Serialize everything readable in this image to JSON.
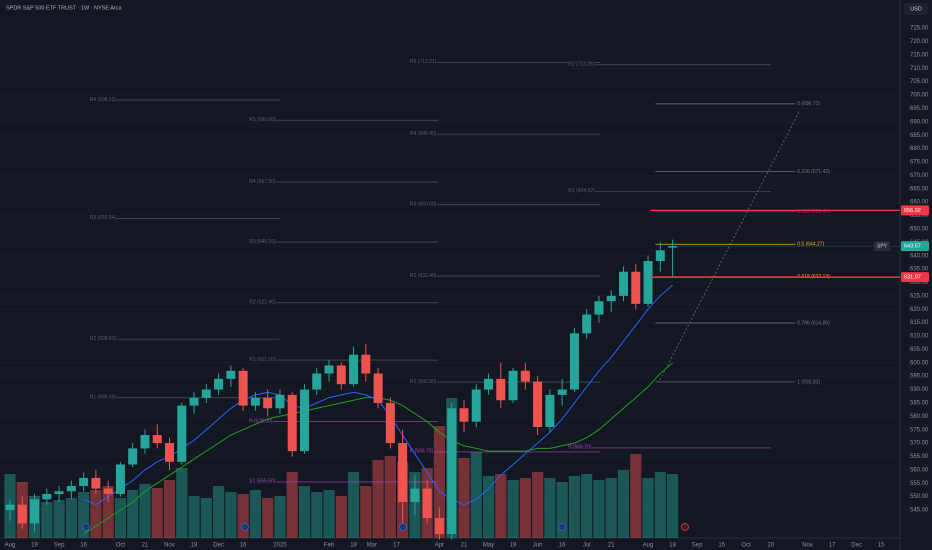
{
  "chart_data": {
    "type": "candlestick",
    "title": "SPDR S&P 500 ETF TRUST · 1W · NYSE Arca",
    "currency": "USD",
    "symbol": "SPY",
    "ylim": [
      533.8,
      735.5
    ],
    "yticks": [
      {
        "value": 545,
        "label": "545.00"
      },
      {
        "value": 550,
        "label": "550.00"
      },
      {
        "value": 555,
        "label": "555.00"
      },
      {
        "value": 560,
        "label": "560.00"
      },
      {
        "value": 565,
        "label": "565.00"
      },
      {
        "value": 570,
        "label": "570.00"
      },
      {
        "value": 575,
        "label": "575.00"
      },
      {
        "value": 580,
        "label": "580.00"
      },
      {
        "value": 585,
        "label": "585.00"
      },
      {
        "value": 590,
        "label": "590.00"
      },
      {
        "value": 595,
        "label": "595.00"
      },
      {
        "value": 600,
        "label": "600.00"
      },
      {
        "value": 605,
        "label": "605.00"
      },
      {
        "value": 610,
        "label": "610.00"
      },
      {
        "value": 615,
        "label": "615.00"
      },
      {
        "value": 620,
        "label": "620.00"
      },
      {
        "value": 625,
        "label": "625.00"
      },
      {
        "value": 630,
        "label": "630.00"
      },
      {
        "value": 635,
        "label": "635.00"
      },
      {
        "value": 640,
        "label": "640.00"
      },
      {
        "value": 645,
        "label": "645.00"
      },
      {
        "value": 650,
        "label": "650.00"
      },
      {
        "value": 655,
        "label": "655.00"
      },
      {
        "value": 660,
        "label": "660.00"
      },
      {
        "value": 665,
        "label": "665.00"
      },
      {
        "value": 670,
        "label": "670.00"
      },
      {
        "value": 675,
        "label": "675.00"
      },
      {
        "value": 680,
        "label": "680.00"
      },
      {
        "value": 685,
        "label": "685.00"
      },
      {
        "value": 690,
        "label": "690.00"
      },
      {
        "value": 695,
        "label": "695.00"
      },
      {
        "value": 700,
        "label": "700.00"
      },
      {
        "value": 705,
        "label": "705.00"
      },
      {
        "value": 710,
        "label": "710.00"
      },
      {
        "value": 715,
        "label": "715.00"
      },
      {
        "value": 720,
        "label": "720.00"
      },
      {
        "value": 725,
        "label": "725.00"
      }
    ],
    "x_labels": [
      {
        "label": "Aug",
        "week": 0
      },
      {
        "label": "19",
        "week": 2
      },
      {
        "label": "Sep",
        "week": 4
      },
      {
        "label": "16",
        "week": 6
      },
      {
        "label": "Oct",
        "week": 9
      },
      {
        "label": "21",
        "week": 11
      },
      {
        "label": "Nov",
        "week": 13
      },
      {
        "label": "18",
        "week": 15
      },
      {
        "label": "Dec",
        "week": 17
      },
      {
        "label": "16",
        "week": 19
      },
      {
        "label": "2025",
        "week": 22
      },
      {
        "label": "Feb",
        "week": 26
      },
      {
        "label": "18",
        "week": 28
      },
      {
        "label": "Mar",
        "week": 29.5
      },
      {
        "label": "17",
        "week": 31.5
      },
      {
        "label": "Apr",
        "week": 35
      },
      {
        "label": "21",
        "week": 37
      },
      {
        "label": "May",
        "week": 39
      },
      {
        "label": "19",
        "week": 41
      },
      {
        "label": "Jun",
        "week": 43
      },
      {
        "label": "16",
        "week": 45
      },
      {
        "label": "Jul",
        "week": 47
      },
      {
        "label": "21",
        "week": 49
      },
      {
        "label": "Aug",
        "week": 52
      },
      {
        "label": "18",
        "week": 54
      },
      {
        "label": "Sep",
        "week": 56
      },
      {
        "label": "15",
        "week": 58
      },
      {
        "label": "Oct",
        "week": 60
      },
      {
        "label": "20",
        "week": 62
      },
      {
        "label": "Nov",
        "week": 65
      },
      {
        "label": "17",
        "week": 67
      },
      {
        "label": "Dec",
        "week": 69
      },
      {
        "label": "15",
        "week": 71
      }
    ],
    "up_color": "#26a69a",
    "down_color": "#ef5350",
    "ohlc": [
      [
        545,
        549,
        541,
        547
      ],
      [
        547,
        550,
        538,
        540
      ],
      [
        540,
        551,
        537,
        549
      ],
      [
        549,
        553,
        547,
        551
      ],
      [
        551,
        554,
        548,
        552
      ],
      [
        552,
        556,
        549,
        554
      ],
      [
        554,
        559,
        552,
        557
      ],
      [
        557,
        560,
        551,
        553
      ],
      [
        553,
        556,
        548,
        551
      ],
      [
        551,
        563,
        550,
        562
      ],
      [
        562,
        570,
        561,
        568
      ],
      [
        568,
        575,
        566,
        573
      ],
      [
        573,
        577,
        568,
        570
      ],
      [
        570,
        572,
        560,
        563
      ],
      [
        563,
        585,
        562,
        584
      ],
      [
        584,
        589,
        581,
        587
      ],
      [
        587,
        592,
        585,
        590
      ],
      [
        590,
        596,
        588,
        594
      ],
      [
        594,
        599,
        591,
        597
      ],
      [
        597,
        598,
        582,
        584
      ],
      [
        584,
        589,
        582,
        587
      ],
      [
        587,
        590,
        580,
        583
      ],
      [
        583,
        590,
        581,
        588
      ],
      [
        588,
        589,
        565,
        567
      ],
      [
        567,
        592,
        566,
        590
      ],
      [
        590,
        598,
        588,
        596
      ],
      [
        596,
        601,
        593,
        599
      ],
      [
        599,
        600,
        590,
        592
      ],
      [
        592,
        606,
        591,
        603
      ],
      [
        603,
        607,
        593,
        596
      ],
      [
        596,
        598,
        583,
        585
      ],
      [
        585,
        587,
        568,
        570
      ],
      [
        570,
        575,
        540,
        548
      ],
      [
        548,
        558,
        543,
        553
      ],
      [
        553,
        556,
        540,
        542
      ],
      [
        542,
        546,
        534,
        536
      ],
      [
        536,
        585,
        534,
        583
      ],
      [
        583,
        586,
        574,
        578
      ],
      [
        578,
        592,
        576,
        590
      ],
      [
        590,
        596,
        588,
        594
      ],
      [
        594,
        600,
        583,
        586
      ],
      [
        586,
        598,
        585,
        597
      ],
      [
        597,
        600,
        590,
        593
      ],
      [
        593,
        595,
        573,
        576
      ],
      [
        576,
        590,
        574,
        588
      ],
      [
        588,
        594,
        584,
        590
      ],
      [
        590,
        613,
        589,
        611
      ],
      [
        611,
        620,
        609,
        618
      ],
      [
        618,
        625,
        615,
        623
      ],
      [
        623,
        627,
        619,
        625
      ],
      [
        625,
        636,
        623,
        634
      ],
      [
        634,
        637,
        620,
        622
      ],
      [
        622,
        640,
        621,
        638
      ],
      [
        638,
        645,
        634,
        642
      ],
      [
        643,
        646,
        632,
        643.57
      ]
    ],
    "volume": [
      320,
      280,
      210,
      180,
      190,
      200,
      230,
      240,
      260,
      200,
      240,
      270,
      250,
      290,
      350,
      210,
      200,
      260,
      230,
      220,
      240,
      200,
      210,
      330,
      260,
      230,
      240,
      210,
      330,
      260,
      390,
      410,
      380,
      330,
      350,
      560,
      700,
      400,
      430,
      310,
      320,
      290,
      300,
      330,
      300,
      280,
      310,
      320,
      290,
      300,
      340,
      420,
      300,
      330,
      320
    ],
    "moving_averages": [
      {
        "color": "#2962ff",
        "values": [
          null,
          null,
          null,
          null,
          null,
          null,
          549,
          547,
          550,
          553,
          556,
          560,
          563,
          565,
          568,
          571,
          575,
          579,
          583,
          586,
          588,
          589,
          588,
          584,
          583,
          585,
          587,
          588,
          589,
          588,
          586,
          580,
          573,
          566,
          559,
          552,
          549,
          547,
          549,
          553,
          558,
          562,
          566,
          570,
          574,
          579,
          585,
          591,
          597,
          602,
          608,
          614,
          620,
          625,
          629
        ]
      },
      {
        "color": "#1e9e1e",
        "values": [
          null,
          null,
          null,
          null,
          null,
          null,
          536,
          539,
          542,
          545,
          548,
          552,
          555,
          558,
          561,
          564,
          567,
          570,
          573,
          575,
          577,
          579,
          580,
          581,
          582,
          583,
          584,
          585,
          586,
          587,
          587,
          586,
          584,
          581,
          578,
          574,
          571,
          569,
          568,
          567,
          567,
          567,
          567,
          568,
          568,
          569,
          570,
          572,
          575,
          579,
          583,
          587,
          591,
          596,
          600
        ]
      }
    ],
    "pivot_groups": [
      {
        "weeks": [
          6.5,
          22
        ],
        "levels": [
          {
            "label": "R4 (698.12)",
            "value": 698.12
          },
          {
            "label": "R3 (653.94)",
            "value": 653.94
          },
          {
            "label": "R2 (608.83)",
            "value": 608.83
          },
          {
            "label": "R1 (586.90)",
            "value": 586.9
          }
        ]
      },
      {
        "weeks": [
          19.5,
          34.9
        ],
        "levels": [
          {
            "label": "R5 (690.60)",
            "value": 690.6
          },
          {
            "label": "R4 (667.50)",
            "value": 667.5
          },
          {
            "label": "R3 (645.10)",
            "value": 645.1
          },
          {
            "label": "R2 (622.40)",
            "value": 622.4
          },
          {
            "label": "R1 (601.00)",
            "value": 601.0
          },
          {
            "label": "P (578.00)",
            "value": 578.0,
            "color": "#ab47bc"
          },
          {
            "label": "S1 (555.50)",
            "value": 555.5,
            "color": "#ab47bc"
          }
        ]
      },
      {
        "weeks": [
          32.6,
          48.1
        ],
        "levels": [
          {
            "label": "R5 (712.21)",
            "value": 712.21
          },
          {
            "label": "R4 (685.40)",
            "value": 685.4
          },
          {
            "label": "R3 (659.00)",
            "value": 659.0
          },
          {
            "label": "R2 (632.40)",
            "value": 632.4
          },
          {
            "label": "R1 (592.80)",
            "value": 592.8
          },
          {
            "label": "P (566.70)",
            "value": 566.7,
            "color": "#ab47bc"
          }
        ]
      },
      {
        "weeks": [
          45.5,
          62
        ],
        "levels": [
          {
            "label": "R2 (711.28)",
            "value": 711.28
          },
          {
            "label": "R1 (664.02)",
            "value": 664.02
          },
          {
            "label": "P (568.20)",
            "value": 568.2,
            "color": "#ab47bc"
          }
        ]
      }
    ],
    "fib": {
      "weeks": [
        52.6,
        64
      ],
      "levels": [
        {
          "label": "0 (696.71)",
          "value": 696.71,
          "color": "#787b86"
        },
        {
          "label": "0.236 (671.42)",
          "value": 671.42,
          "color": "#787b86"
        },
        {
          "label": "0.382 (656.41)",
          "value": 656.41,
          "color": "#c2185b"
        },
        {
          "label": "0.5 (644.27)",
          "value": 644.27,
          "color": "#f9a825"
        },
        {
          "label": "0.618 (632.13)",
          "value": 632.13,
          "color": "#f9a825"
        },
        {
          "label": "0.786 (614.85)",
          "value": 614.85,
          "color": "#787b86"
        },
        {
          "label": "1 (592.83)",
          "value": 592.83,
          "color": "#787b86"
        }
      ]
    },
    "red_lines": {
      "from_week": 52.2,
      "values": [
        656.92,
        631.97
      ],
      "color": "#f23645"
    }
  }
}
